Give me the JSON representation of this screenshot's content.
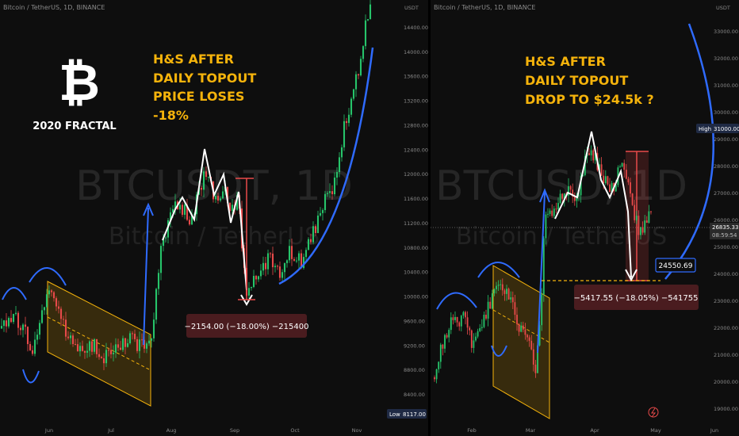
{
  "chart_data": [
    {
      "type": "candlestick",
      "symbol": "Bitcoin / TetherUS, 1D, BINANCE",
      "watermark_ticker": "BTCUSDT, 1D",
      "watermark_name": "Bitcoin / TetherUS",
      "x_ticks": [
        "Jun",
        "Jul",
        "Aug",
        "Sep",
        "Oct",
        "Nov"
      ],
      "y_ticks": [
        "8400.00",
        "8800.00",
        "9200.00",
        "9600.00",
        "10000.00",
        "10400.00",
        "10800.00",
        "11200.00",
        "11600.00",
        "12000.00",
        "12400.00",
        "12800.00",
        "13200.00",
        "13600.00",
        "14000.00",
        "14400.00"
      ],
      "y_top_label": "USDT",
      "low_label": "Low",
      "low_value": "8117.00",
      "annotations": [
        "H&S AFTER",
        "DAILY TOPOUT",
        "PRICE LOSES",
        "-18%"
      ],
      "fractal_label": "2020 FRACTAL",
      "logo_glyph": "₿",
      "measure_label": "−2154.00 (−18.00%) −215400",
      "head_shoulders": [
        [
          11200,
          "2020-07-27"
        ],
        [
          11950,
          "2020-08-10"
        ],
        [
          11200,
          "2020-08-22"
        ],
        [
          12000,
          "2020-08-25"
        ]
      ]
    },
    {
      "type": "candlestick",
      "symbol": "Bitcoin / TetherUS, 1D, BINANCE",
      "watermark_ticker": "BTCUSD, 1D",
      "watermark_name": "Bitcoin / TetherUS",
      "x_ticks": [
        "Feb",
        "Mar",
        "Apr",
        "May",
        "Jun"
      ],
      "y_ticks": [
        "19000.00",
        "20000.00",
        "21000.00",
        "22000.00",
        "23000.00",
        "24000.00",
        "25000.00",
        "26000.00",
        "27000.00",
        "28000.00",
        "29000.00",
        "30000.00",
        "31000.00",
        "32000.00",
        "33000.00"
      ],
      "y_top_label": "USDT",
      "annotations": [
        "H&S AFTER",
        "DAILY TOPOUT",
        "DROP TO $24.5k ?"
      ],
      "high_label": "High",
      "high_value": "31000.00",
      "current_price": "26835.33",
      "countdown": "08:59:54",
      "target_price": "24550.69",
      "measure_label": "−5417.55 (−18.05%) −541755"
    }
  ],
  "colors": {
    "background": "#0e0e0e",
    "bull": "#26c46a",
    "bear": "#e84a4a",
    "channel": "#f5b30b",
    "arc": "#2f6bff",
    "annotation": "#f5b30b",
    "hs_line": "#ffffff"
  }
}
